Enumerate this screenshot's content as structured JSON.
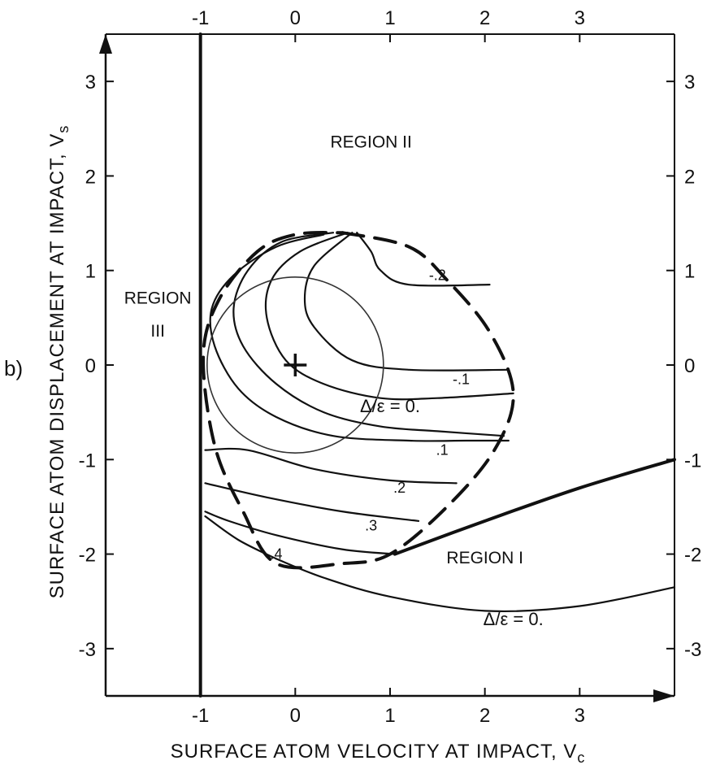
{
  "chart_data": {
    "type": "line",
    "panel_label": "b)",
    "xlabel": "SURFACE ATOM VELOCITY AT IMPACT, V",
    "xlabel_sub": "c",
    "ylabel": "SURFACE ATOM DISPLACEMENT AT IMPACT, V",
    "ylabel_sub": "s",
    "xlim": [
      -2,
      4
    ],
    "ylim": [
      -3.5,
      3.5
    ],
    "x_ticks": [
      {
        "v": -1,
        "label": "-1"
      },
      {
        "v": 0,
        "label": "0"
      },
      {
        "v": 1,
        "label": "1"
      },
      {
        "v": 2,
        "label": "2"
      },
      {
        "v": 3,
        "label": "3"
      }
    ],
    "y_ticks": [
      {
        "v": 3,
        "label": "3"
      },
      {
        "v": 2,
        "label": "2"
      },
      {
        "v": 1,
        "label": "1"
      },
      {
        "v": 0,
        "label": "0"
      },
      {
        "v": -1,
        "label": "-1"
      },
      {
        "v": -2,
        "label": "-2"
      },
      {
        "v": -3,
        "label": "-3"
      }
    ],
    "regions": [
      {
        "label": "REGION II",
        "x": 0.8,
        "y": 2.3
      },
      {
        "label": "REGION",
        "x": -1.45,
        "y": 0.65
      },
      {
        "label": "III",
        "x": -1.45,
        "y": 0.3
      },
      {
        "label": "REGION I",
        "x": 2.0,
        "y": -2.1
      }
    ],
    "contour_labels": [
      {
        "text": "-.2",
        "x": 1.5,
        "y": 0.9
      },
      {
        "text": "-.1",
        "x": 1.75,
        "y": -0.2
      },
      {
        "text": "Δ/ε = 0.",
        "x": 1.0,
        "y": -0.5
      },
      {
        "text": ".1",
        "x": 1.55,
        "y": -0.95
      },
      {
        "text": ".2",
        "x": 1.1,
        "y": -1.35
      },
      {
        "text": ".3",
        "x": 0.8,
        "y": -1.75
      },
      {
        "text": ".4",
        "x": -0.2,
        "y": -2.05
      },
      {
        "text": "Δ/ε = 0.",
        "x": 2.3,
        "y": -2.75
      }
    ],
    "center_marker": {
      "x": 0,
      "y": 0
    },
    "small_circle": {
      "cx": 0,
      "cy": 0,
      "r": 0.93
    },
    "series": [
      {
        "role": "boundary_vertical",
        "style": "solid-bold",
        "points": [
          [
            -1,
            3.5
          ],
          [
            -1,
            -3.5
          ]
        ]
      },
      {
        "role": "outer_circle",
        "style": "dashed-bold",
        "points": [
          [
            0.5,
            1.4
          ],
          [
            1.2,
            1.25
          ],
          [
            1.6,
            0.9
          ],
          [
            2.05,
            0.35
          ],
          [
            2.3,
            -0.3
          ],
          [
            2.1,
            -0.9
          ],
          [
            1.6,
            -1.5
          ],
          [
            1.0,
            -2.0
          ],
          [
            0.5,
            -2.1
          ],
          [
            -0.2,
            -2.1
          ],
          [
            -0.55,
            -1.55
          ],
          [
            -0.85,
            -0.85
          ],
          [
            -0.97,
            0.1
          ],
          [
            -0.8,
            0.7
          ],
          [
            -0.4,
            1.2
          ],
          [
            0.0,
            1.38
          ],
          [
            0.5,
            1.4
          ]
        ]
      },
      {
        "role": "region_boundary_upper",
        "style": "solid-bold",
        "points": [
          [
            1.05,
            -2.0
          ],
          [
            2.0,
            -1.65
          ],
          [
            3.0,
            -1.3
          ],
          [
            4.0,
            -1.0
          ]
        ]
      },
      {
        "role": "region_boundary_lower",
        "style": "solid",
        "points": [
          [
            -0.2,
            -2.05
          ],
          [
            0.3,
            -2.25
          ],
          [
            1.0,
            -2.45
          ],
          [
            2.0,
            -2.6
          ],
          [
            3.0,
            -2.55
          ],
          [
            4.0,
            -2.35
          ]
        ]
      },
      {
        "role": "contour_-0.2",
        "style": "solid",
        "points": [
          [
            2.05,
            0.85
          ],
          [
            1.2,
            0.85
          ],
          [
            0.9,
            1.0
          ],
          [
            0.8,
            1.2
          ],
          [
            0.65,
            1.4
          ]
        ]
      },
      {
        "role": "contour_-0.1",
        "style": "solid",
        "points": [
          [
            2.25,
            -0.05
          ],
          [
            1.2,
            -0.05
          ],
          [
            0.6,
            0.05
          ],
          [
            0.2,
            0.4
          ],
          [
            0.1,
            0.7
          ],
          [
            0.2,
            1.05
          ],
          [
            0.6,
            1.4
          ]
        ]
      },
      {
        "role": "contour_0_a",
        "style": "solid",
        "points": [
          [
            2.3,
            -0.3
          ],
          [
            1.5,
            -0.35
          ],
          [
            0.9,
            -0.35
          ],
          [
            0.3,
            -0.2
          ],
          [
            -0.1,
            0.05
          ],
          [
            -0.3,
            0.5
          ],
          [
            -0.25,
            0.9
          ],
          [
            0.05,
            1.2
          ],
          [
            0.55,
            1.4
          ]
        ]
      },
      {
        "role": "contour_0_b",
        "style": "solid",
        "points": [
          [
            2.2,
            -0.75
          ],
          [
            1.5,
            -0.7
          ],
          [
            0.9,
            -0.65
          ],
          [
            0.3,
            -0.5
          ],
          [
            -0.2,
            -0.2
          ],
          [
            -0.55,
            0.2
          ],
          [
            -0.65,
            0.6
          ],
          [
            -0.5,
            1.0
          ],
          [
            -0.15,
            1.3
          ],
          [
            0.4,
            1.4
          ]
        ]
      },
      {
        "role": "contour_0.1",
        "style": "solid",
        "points": [
          [
            2.25,
            -0.8
          ],
          [
            1.8,
            -0.8
          ],
          [
            1.2,
            -0.8
          ],
          [
            0.4,
            -0.75
          ],
          [
            -0.2,
            -0.55
          ],
          [
            -0.6,
            -0.25
          ],
          [
            -0.85,
            0.2
          ],
          [
            -0.88,
            0.6
          ],
          [
            -0.65,
            0.95
          ],
          [
            -0.2,
            1.25
          ],
          [
            0.3,
            1.38
          ]
        ]
      },
      {
        "role": "contour_0.2",
        "style": "solid",
        "points": [
          [
            1.7,
            -1.25
          ],
          [
            1.0,
            -1.22
          ],
          [
            0.2,
            -1.1
          ],
          [
            -0.5,
            -0.9
          ],
          [
            -0.95,
            -0.9
          ]
        ]
      },
      {
        "role": "contour_0.3",
        "style": "solid",
        "points": [
          [
            1.3,
            -1.65
          ],
          [
            0.5,
            -1.55
          ],
          [
            -0.3,
            -1.4
          ],
          [
            -0.95,
            -1.25
          ]
        ]
      },
      {
        "role": "contour_0.4",
        "style": "solid",
        "points": [
          [
            1.05,
            -2.0
          ],
          [
            0.5,
            -1.95
          ],
          [
            -0.2,
            -1.8
          ],
          [
            -0.7,
            -1.65
          ],
          [
            -0.95,
            -1.55
          ]
        ]
      },
      {
        "role": "contour_lower_left",
        "style": "solid",
        "points": [
          [
            -0.2,
            -2.05
          ],
          [
            -0.6,
            -1.85
          ],
          [
            -0.95,
            -1.6
          ]
        ]
      }
    ]
  }
}
